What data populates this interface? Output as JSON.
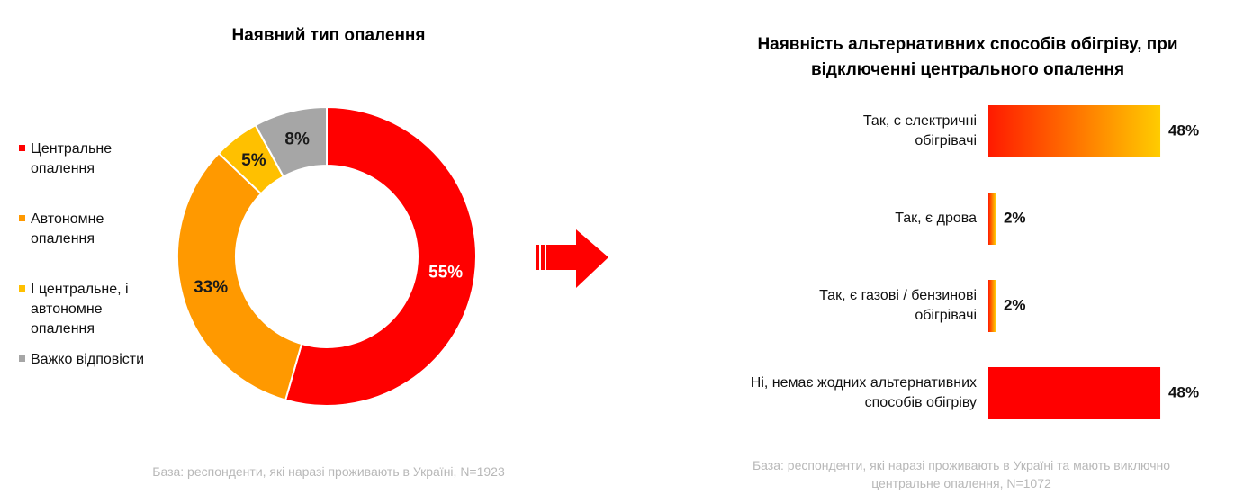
{
  "chart_data": [
    {
      "type": "pie",
      "title": "Наявний тип опалення",
      "categories": [
        "Центральне опалення",
        "Автономне опалення",
        "І центральне, і автономне опалення",
        "Важко відповісти"
      ],
      "values": [
        55,
        33,
        5,
        8
      ],
      "value_labels": [
        "55%",
        "33%",
        "5%",
        "8%"
      ],
      "colors": [
        "#ff0000",
        "#ff9900",
        "#ffc000",
        "#a6a6a6"
      ],
      "note": "База: респонденти, які наразі проживають в Україні, N=1923"
    },
    {
      "type": "bar",
      "orientation": "horizontal",
      "title": "Наявність альтернативних способів обігріву, при відключенні центрального опалення",
      "categories": [
        "Так, є електричні обігрівачі",
        "Так, є дрова",
        "Так, є газові / бензинові обігрівачі",
        "Ні, немає жодних альтернативних способів обігріву"
      ],
      "values": [
        48,
        2,
        2,
        48
      ],
      "value_labels": [
        "48%",
        "2%",
        "2%",
        "48%"
      ],
      "colors": [
        [
          "#ff1a00",
          "#ffcc00"
        ],
        [
          "#ff1a00",
          "#ffcc00"
        ],
        [
          "#ff1a00",
          "#ffcc00"
        ],
        [
          "#ff0000",
          "#ff0000"
        ]
      ],
      "note": "База: респонденти, які наразі проживають в Україні та мають виключно центральне опалення, N=1072"
    }
  ]
}
